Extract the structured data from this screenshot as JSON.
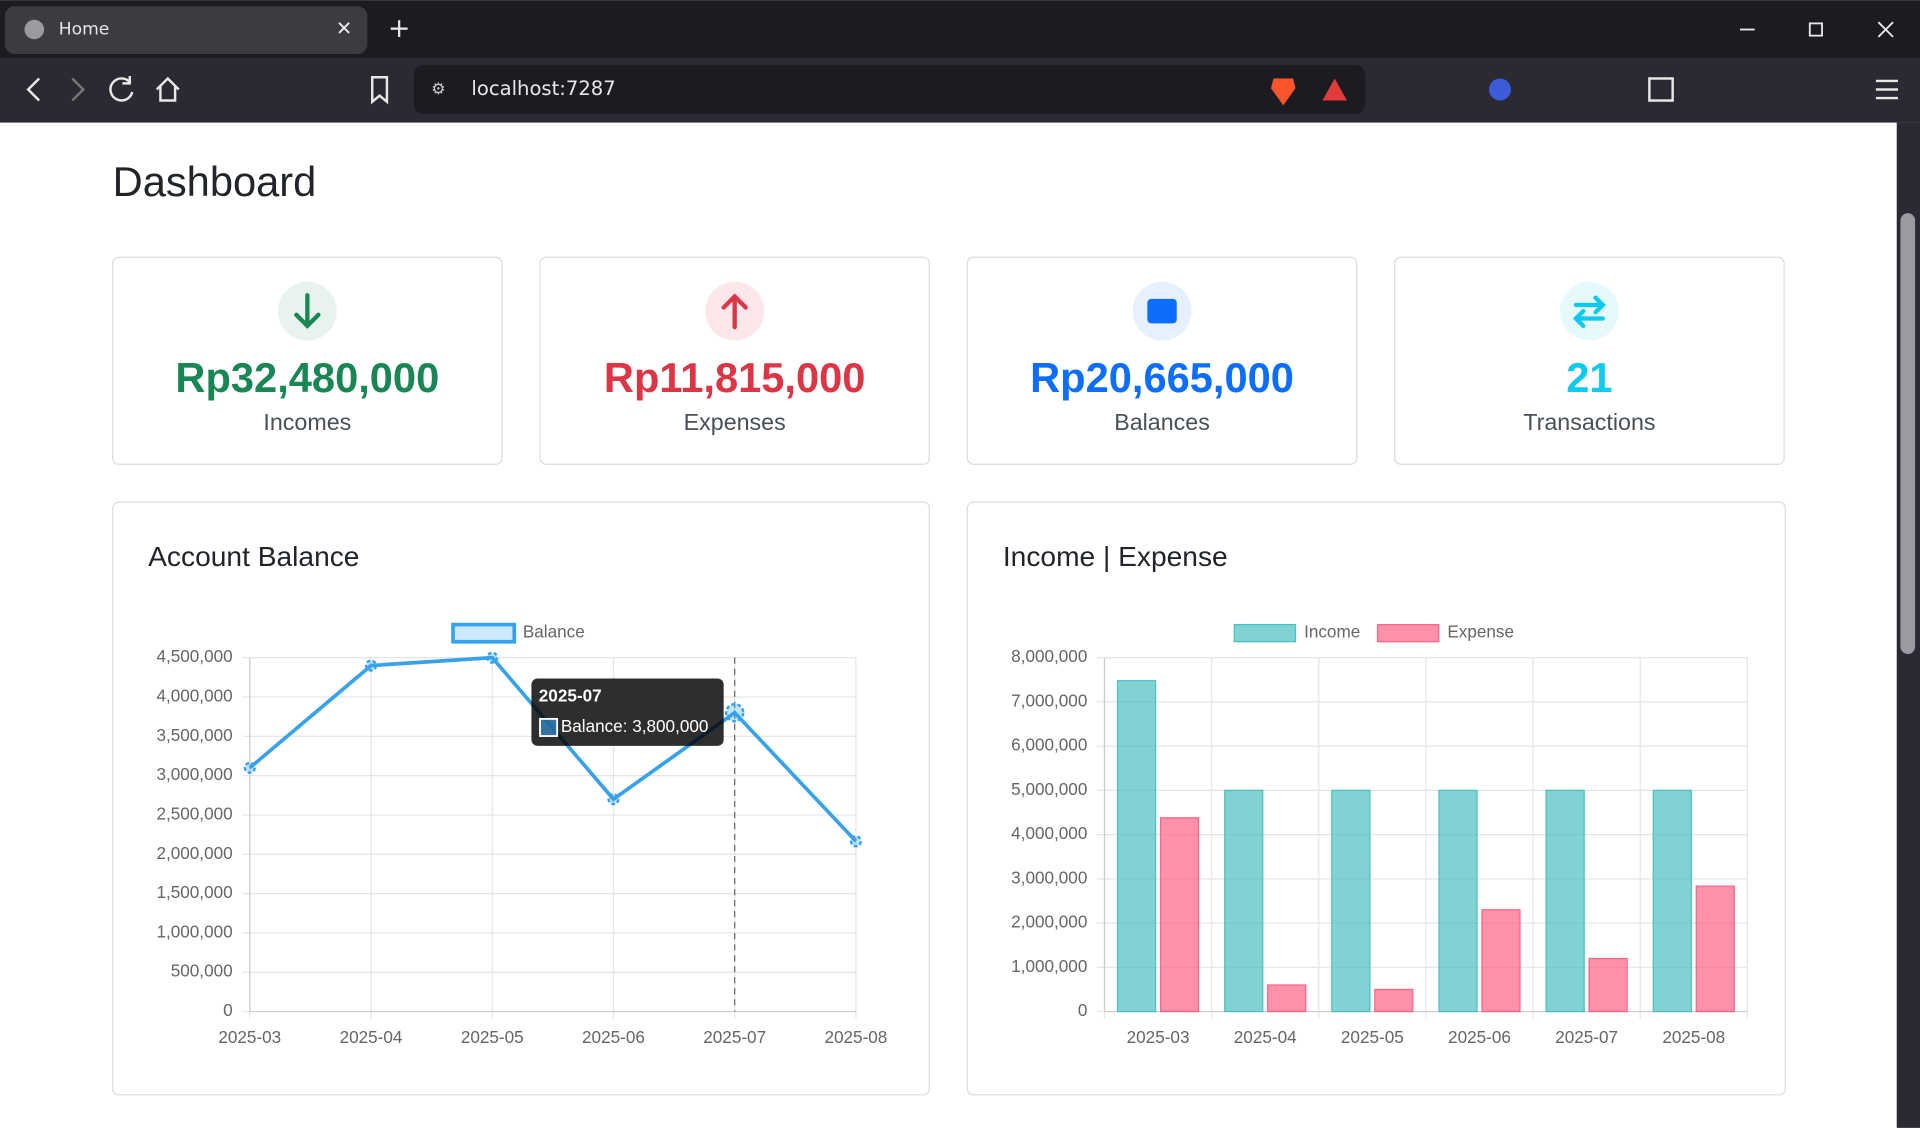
{
  "browser": {
    "tab_title": "Home",
    "url": "localhost:7287"
  },
  "page": {
    "title": "Dashboard"
  },
  "cards": [
    {
      "value": "Rp32,480,000",
      "label": "Incomes"
    },
    {
      "value": "Rp11,815,000",
      "label": "Expenses"
    },
    {
      "value": "Rp20,665,000",
      "label": "Balances"
    },
    {
      "value": 21,
      "label": "Transactions"
    }
  ],
  "chart_data": [
    {
      "type": "line",
      "title": "Account Balance",
      "categories": [
        "2025-03",
        "2025-04",
        "2025-05",
        "2025-06",
        "2025-07",
        "2025-08"
      ],
      "series": [
        {
          "name": "Balance",
          "color": "#36a2eb",
          "values": [
            3100000,
            4400000,
            4500000,
            2700000,
            3800000,
            2165000
          ]
        }
      ],
      "ylim": [
        0,
        4500000
      ],
      "yticks": [
        0,
        {
          "value": 500000,
          "label": "500,000"
        },
        {
          "value": 1000000,
          "label": "1,000,000"
        },
        {
          "value": 1500000,
          "label": "1,500,000"
        },
        {
          "value": 2000000,
          "label": "2,000,000"
        },
        {
          "value": 2500000,
          "label": "2,500,000"
        },
        {
          "value": 3000000,
          "label": "3,000,000"
        },
        {
          "value": 3500000,
          "label": "3,500,000"
        },
        {
          "value": 4000000,
          "label": "4,000,000"
        },
        {
          "value": 4500000,
          "label": "4,500,000"
        }
      ],
      "grid": true,
      "legend": "top",
      "tooltip": {
        "title": "2025-07",
        "label": "Balance: 3,800,000"
      }
    },
    {
      "type": "bar",
      "title": "Income | Expense",
      "categories": [
        "2025-03",
        "2025-04",
        "2025-05",
        "2025-06",
        "2025-07",
        "2025-08"
      ],
      "series": [
        {
          "name": "Income",
          "color": "#4bc0c0",
          "values": [
            7480000,
            5000000,
            5000000,
            5000000,
            5000000,
            5000000
          ]
        },
        {
          "name": "Expense",
          "color": "#ff6384",
          "values": [
            4380000,
            600000,
            500000,
            2300000,
            1200000,
            2835000
          ]
        }
      ],
      "ylim": [
        0,
        8000000
      ],
      "yticks": [
        0,
        {
          "value": 1000000,
          "label": "1,000,000"
        },
        {
          "value": 2000000,
          "label": "2,000,000"
        },
        {
          "value": 3000000,
          "label": "3,000,000"
        },
        {
          "value": 4000000,
          "label": "4,000,000"
        },
        {
          "value": 5000000,
          "label": "5,000,000"
        },
        {
          "value": 6000000,
          "label": "6,000,000"
        },
        {
          "value": 7000000,
          "label": "7,000,000"
        },
        {
          "value": 8000000,
          "label": "8,000,000"
        }
      ],
      "grid": true,
      "legend": "top"
    }
  ]
}
